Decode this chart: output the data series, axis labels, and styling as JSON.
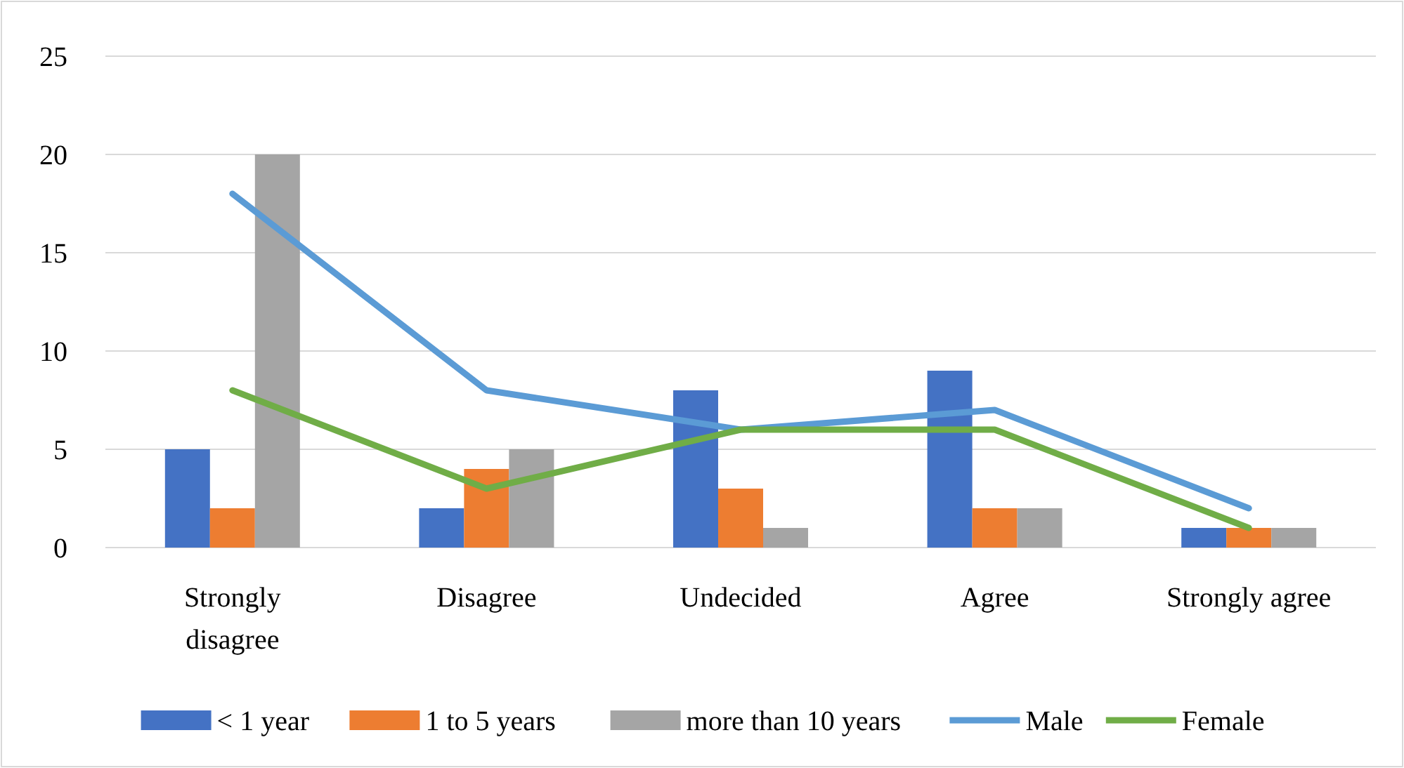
{
  "chart_data": {
    "type": "bar",
    "categories": [
      "Strongly disagree",
      "Disagree",
      "Undecided",
      "Agree",
      "Strongly agree"
    ],
    "series": [
      {
        "name": "< 1 year",
        "color": "#4472c4",
        "values": [
          5,
          2,
          8,
          9,
          1
        ]
      },
      {
        "name": "1 to 5 years",
        "color": "#ed7d31",
        "values": [
          2,
          4,
          3,
          2,
          1
        ]
      },
      {
        "name": "more than 10 years",
        "color": "#a5a5a5",
        "values": [
          20,
          5,
          1,
          2,
          1
        ]
      },
      {
        "name": "Male",
        "type": "line",
        "color": "#5b9bd5",
        "values": [
          18,
          8,
          6,
          7,
          2
        ]
      },
      {
        "name": "Female",
        "type": "line",
        "color": "#70ad47",
        "values": [
          8,
          3,
          6,
          6,
          1
        ]
      }
    ],
    "ylim": [
      0,
      25
    ],
    "yticks": [
      0,
      5,
      10,
      15,
      20,
      25
    ],
    "grid": "y",
    "legend": "bottom",
    "marker": "none",
    "line_style": "solid"
  }
}
